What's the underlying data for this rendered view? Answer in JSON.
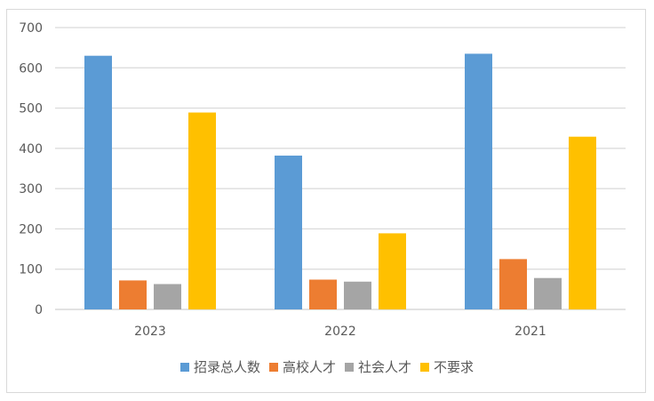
{
  "chart_data": {
    "type": "bar",
    "categories": [
      "2023",
      "2022",
      "2021"
    ],
    "series": [
      {
        "name": "招录总人数",
        "values": [
          630,
          382,
          635
        ],
        "color": "#5b9bd5"
      },
      {
        "name": "高校人才",
        "values": [
          72,
          74,
          125
        ],
        "color": "#ed7d31"
      },
      {
        "name": "社会人才",
        "values": [
          63,
          69,
          78
        ],
        "color": "#a5a5a5"
      },
      {
        "name": "不要求",
        "values": [
          489,
          189,
          429
        ],
        "color": "#ffc000"
      }
    ],
    "ylim": [
      0,
      700
    ],
    "yticks": [
      "0",
      "100",
      "200",
      "300",
      "400",
      "500",
      "600",
      "700"
    ],
    "grid": true,
    "legend": "bottom"
  }
}
